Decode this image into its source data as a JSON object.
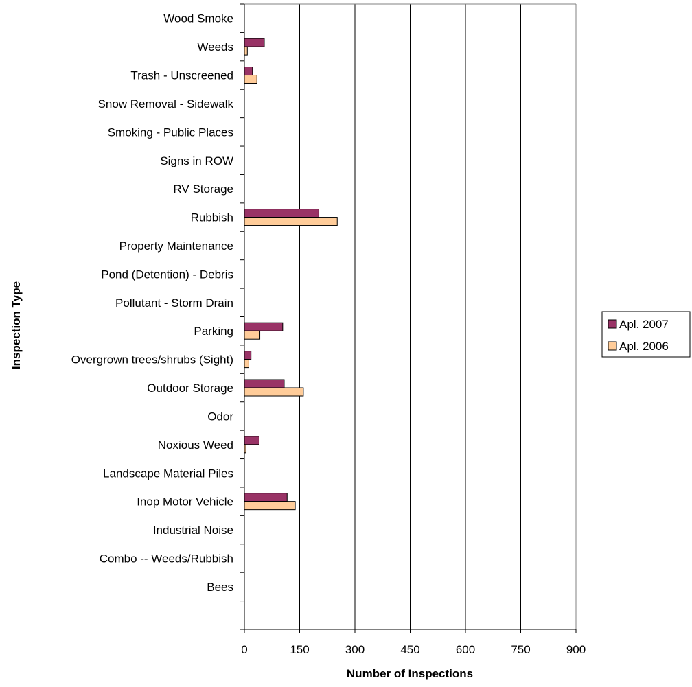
{
  "chart_data": {
    "type": "bar",
    "orientation": "horizontal",
    "categories": [
      "Wood Smoke",
      "Weeds",
      "Trash - Unscreened",
      "Snow Removal - Sidewalk",
      "Smoking - Public Places",
      "Signs in ROW",
      "RV Storage",
      "Rubbish",
      "Property Maintenance",
      "Pond (Detention) - Debris",
      "Pollutant - Storm Drain",
      "Parking",
      "Overgrown trees/shrubs (Sight)",
      "Outdoor Storage",
      "Odor",
      "Noxious Weed",
      "Landscape Material Piles",
      "Inop Motor Vehicle",
      "Industrial Noise",
      "Combo -- Weeds/Rubbish",
      "Bees"
    ],
    "series": [
      {
        "name": "Apl. 2007",
        "color": "#993366",
        "values": [
          0,
          54,
          22,
          0,
          0,
          0,
          0,
          202,
          0,
          0,
          0,
          104,
          18,
          108,
          0,
          40,
          0,
          116,
          0,
          0,
          0
        ]
      },
      {
        "name": "Apl. 2006",
        "color": "#FFCC99",
        "values": [
          0,
          8,
          34,
          0,
          0,
          0,
          0,
          252,
          0,
          0,
          0,
          42,
          12,
          160,
          0,
          4,
          0,
          138,
          0,
          0,
          0
        ]
      }
    ],
    "title": "",
    "xlabel": "Number of Inspections",
    "ylabel": "Inspection Type",
    "xlim": [
      0,
      900
    ],
    "xticks": [
      0,
      150,
      300,
      450,
      600,
      750,
      900
    ],
    "xtick_labels": [
      "0",
      "150",
      "300",
      "450",
      "600",
      "750",
      "900"
    ],
    "grid": "vertical",
    "legend_position": "right"
  }
}
